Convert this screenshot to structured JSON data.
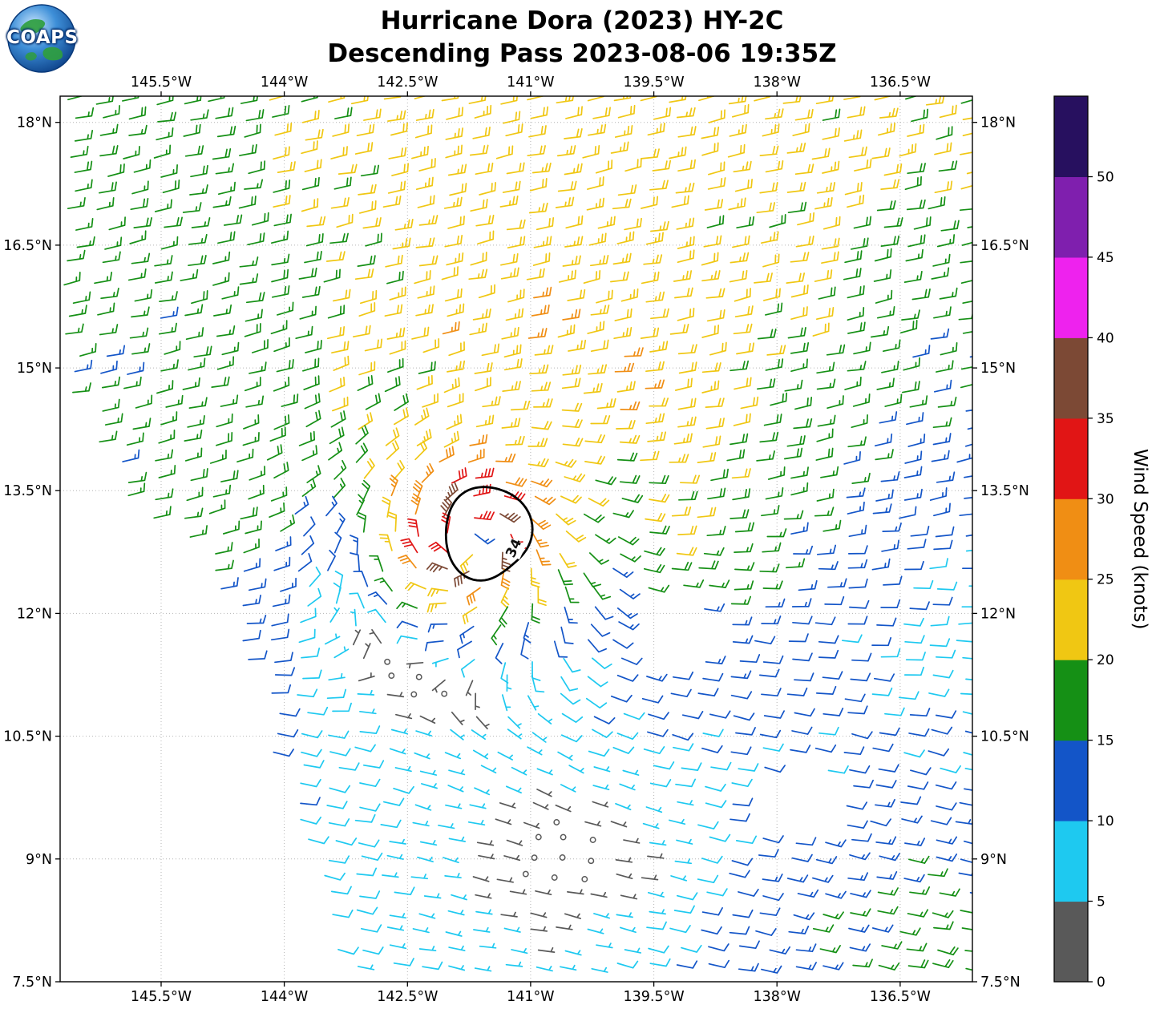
{
  "header": {
    "title_line1": "Hurricane Dora (2023) HY-2C",
    "title_line2": "Descending Pass 2023-08-06 19:35Z"
  },
  "logo": {
    "text": "COAPS"
  },
  "chart_data": {
    "type": "wind_barb_map",
    "title": "Hurricane Dora (2023) HY-2C",
    "subtitle": "Descending Pass 2023-08-06 19:35Z",
    "x_axis": {
      "tick_labels": [
        "145.5°W",
        "144°W",
        "142.5°W",
        "141°W",
        "139.5°W",
        "138°W",
        "136.5°W"
      ],
      "tick_lons": [
        -145.5,
        -144,
        -142.5,
        -141,
        -139.5,
        -138,
        -136.5
      ]
    },
    "y_axis": {
      "tick_labels": [
        "18°N",
        "16.5°N",
        "15°N",
        "13.5°N",
        "12°N",
        "10.5°N",
        "9°N",
        "7.5°N"
      ],
      "tick_lats": [
        18,
        16.5,
        15,
        13.5,
        12,
        10.5,
        9,
        7.5
      ]
    },
    "lon_range": [
      -146.73,
      -135.62
    ],
    "lat_range_top_bottom": [
      18.32,
      7.5
    ],
    "grid": true,
    "colorbar": {
      "label": "Wind Speed (knots)",
      "tick_values": [
        0,
        5,
        10,
        15,
        20,
        25,
        30,
        35,
        40,
        45,
        50
      ],
      "segment_colors_bottom_to_top": [
        "#595959",
        "#1EC9F0",
        "#1355C8",
        "#159015",
        "#F0C713",
        "#F08E14",
        "#E11515",
        "#7C4935",
        "#EE22EE",
        "#7F1FAE",
        "#27105F"
      ]
    },
    "storm": {
      "name": "Dora",
      "center_lon": -141.78,
      "center_lat": 12.9,
      "contour": {
        "label": "34",
        "center_lon": -141.53,
        "center_lat": 12.99,
        "rx_deg": 0.51,
        "ry_deg": 0.58,
        "rotation_deg": 15,
        "label_lon": -141.21,
        "label_lat": 12.8,
        "label_rotation_deg": -65
      }
    },
    "wind_model": {
      "bg_lons": [
        -147,
        -145.5,
        -144,
        -142.5,
        -141,
        -139.5,
        -138,
        -136.5,
        -135
      ],
      "bg_lats": [
        19,
        17.5,
        16,
        14.5,
        13,
        11.5,
        10,
        8.5,
        7
      ],
      "bg_speed_grid": [
        [
          17,
          18,
          21,
          22,
          22,
          22,
          22,
          22,
          21
        ],
        [
          17,
          17,
          20,
          22,
          22,
          22,
          22,
          21,
          19
        ],
        [
          16,
          16,
          18,
          21,
          22,
          22,
          21,
          17,
          16
        ],
        [
          16,
          16,
          17,
          19,
          21,
          22,
          18,
          16,
          14
        ],
        [
          15,
          16,
          17,
          18,
          22,
          20,
          16,
          12,
          10
        ],
        [
          12,
          13,
          13,
          13,
          14,
          13,
          12,
          9,
          8
        ],
        [
          9,
          10,
          10,
          9,
          8,
          9,
          10,
          11,
          10
        ],
        [
          8,
          8,
          9,
          7,
          5,
          8,
          13,
          16,
          16
        ],
        [
          8,
          8,
          9,
          8,
          6,
          10,
          15,
          17,
          16
        ]
      ],
      "dir_north_lat": 13.5,
      "dir_south_lat": 10.5,
      "dir_north_deg": 191,
      "dir_south_deg": 169,
      "vortex": {
        "rmax": 0.36,
        "vmax": 42,
        "falloff": 0.42,
        "gauss": 2.0,
        "inflow_deg": 18,
        "bg_suppress": 2.6
      },
      "calm_zone": {
        "lon": -140.5,
        "lat": 9.1,
        "sx": 1.15,
        "sy": 0.8,
        "strength": 0.8
      },
      "swath_left_edge": [
        [
          15.0,
          -146.73
        ],
        [
          13.5,
          -146.0
        ],
        [
          12.7,
          -145.15
        ],
        [
          12.0,
          -144.6
        ],
        [
          10.5,
          -144.22
        ],
        [
          9.0,
          -143.65
        ],
        [
          7.4,
          -143.3
        ]
      ],
      "data_gaps": [
        {
          "lon": -139.35,
          "lat": 11.85,
          "rx": 0.48,
          "ry": 0.45
        },
        {
          "lon": -137.75,
          "lat": 9.7,
          "rx": 0.55,
          "ry": 0.5
        }
      ]
    },
    "barb_grid": {
      "dlon": 0.35,
      "dlat": 0.22
    }
  }
}
